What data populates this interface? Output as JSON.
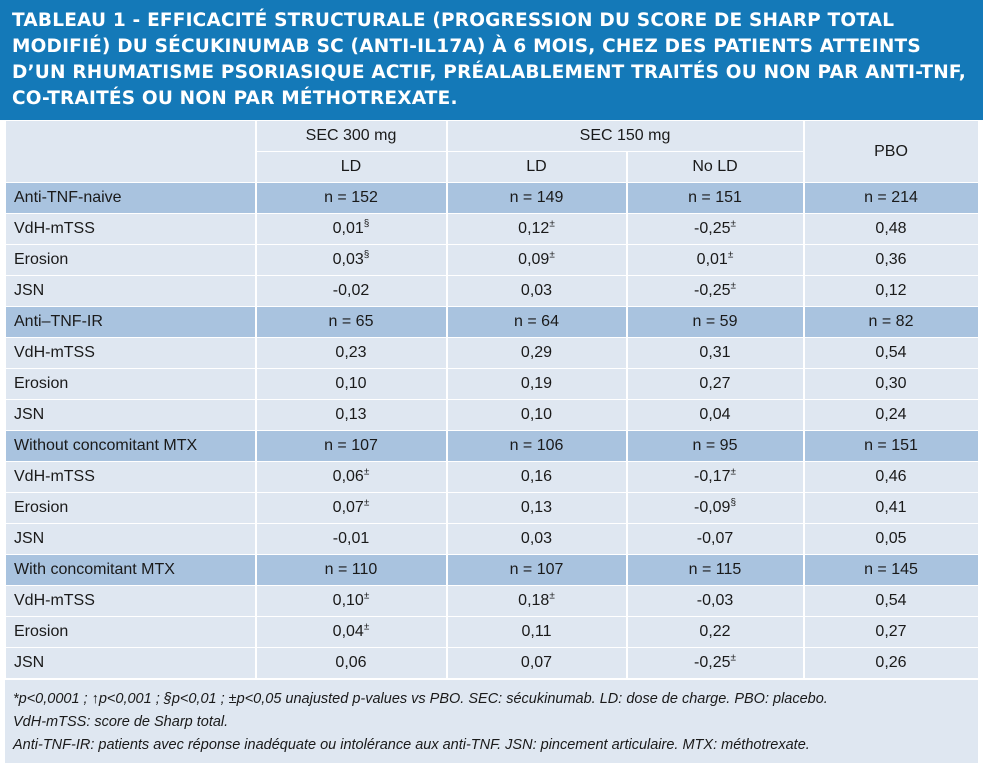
{
  "title": "Tableau 1 - Efficacité structurale (progression du score de Sharp total modifié) du sécukinumab SC (anti-IL17A) à 6 mois, chez des patients atteints d’un rhumatisme psoriasique actif, préalablement traités ou non par anti-TNF, co-traités ou non par méthotrexate.",
  "header": {
    "sec300": "SEC 300 mg",
    "sec150": "SEC 150 mg",
    "pbo": "PBO",
    "ld": "LD",
    "ld2": "LD",
    "nold": "No LD"
  },
  "rows": [
    {
      "label": "Anti-TNF-naive",
      "group": true,
      "c1": "n = 152",
      "c2": "n = 149",
      "c3": "n = 151",
      "c4": "n = 214"
    },
    {
      "label": "VdH-mTSS",
      "c1": "0,01",
      "s1": "§",
      "c2": "0,12",
      "s2": "±",
      "c3": "-0,25",
      "s3": "±",
      "c4": "0,48"
    },
    {
      "label": "Erosion",
      "c1": "0,03",
      "s1": "§",
      "c2": "0,09",
      "s2": "±",
      "c3": "0,01",
      "s3": "±",
      "c4": "0,36"
    },
    {
      "label": "JSN",
      "c1": "-0,02",
      "c2": "0,03",
      "c3": "-0,25",
      "s3": "±",
      "c4": "0,12"
    },
    {
      "label": "Anti–TNF-IR",
      "group": true,
      "c1": "n = 65",
      "c2": "n = 64",
      "c3": "n = 59",
      "c4": "n = 82"
    },
    {
      "label": "VdH-mTSS",
      "c1": "0,23",
      "c2": "0,29",
      "c3": "0,31",
      "c4": "0,54"
    },
    {
      "label": "Erosion",
      "c1": "0,10",
      "c2": "0,19",
      "c3": "0,27",
      "c4": "0,30"
    },
    {
      "label": "JSN",
      "c1": "0,13",
      "c2": "0,10",
      "c3": "0,04",
      "c4": "0,24"
    },
    {
      "label": "Without concomitant MTX",
      "group": true,
      "c1": "n = 107",
      "c2": "n = 106",
      "c3": "n = 95",
      "c4": "n = 151"
    },
    {
      "label": "VdH-mTSS",
      "c1": "0,06",
      "s1": "±",
      "c2": "0,16",
      "c3": "-0,17",
      "s3": "±",
      "c4": "0,46"
    },
    {
      "label": "Erosion",
      "c1": "0,07",
      "s1": "±",
      "c2": "0,13",
      "c3": "-0,09",
      "s3": "§",
      "c4": "0,41"
    },
    {
      "label": "JSN",
      "c1": "-0,01",
      "c2": "0,03",
      "c3": "-0,07",
      "c4": "0,05"
    },
    {
      "label": "With concomitant MTX",
      "group": true,
      "c1": "n = 110",
      "c2": "n = 107",
      "c3": "n = 115",
      "c4": "n = 145"
    },
    {
      "label": "VdH-mTSS",
      "c1": "0,10",
      "s1": "±",
      "c2": "0,18",
      "s2": "±",
      "c3": "-0,03",
      "c4": "0,54"
    },
    {
      "label": "Erosion",
      "c1": "0,04",
      "s1": "±",
      "c2": "0,11",
      "c3": "0,22",
      "c4": "0,27"
    },
    {
      "label": "JSN",
      "c1": "0,06",
      "c2": "0,07",
      "c3": "-0,25",
      "s3": "±",
      "c4": "0,26"
    }
  ],
  "footer": {
    "line1": "*p<0,0001 ; ↑p<0,001 ; §p<0,01 ; ±p<0,05 unajusted p-values vs PBO. SEC: sécukinumab. LD: dose de charge. PBO: placebo.",
    "line2": "VdH-mTSS: score de Sharp total.",
    "line3": "Anti-TNF-IR: patients avec réponse inadéquate ou intolérance aux anti-TNF. JSN: pincement articulaire. MTX: méthotrexate."
  }
}
